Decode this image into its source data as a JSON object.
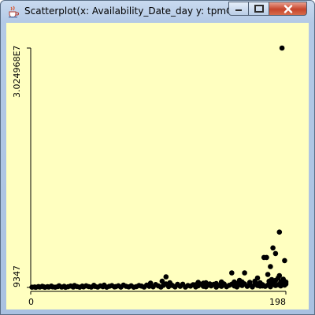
{
  "window": {
    "title": "Scatterplot(x: Availability_Date_day y: tpmC)",
    "icon": "java-cup-icon",
    "buttons": [
      "minimize",
      "maximize",
      "close"
    ]
  },
  "colors": {
    "plot_background": "#ffffc0",
    "points": "#000000",
    "close_button": "#c7452c",
    "title_bar": "#b9cde6"
  },
  "chart_data": {
    "type": "scatter",
    "xlabel": "Availability_Date_day",
    "ylabel": "tpmC",
    "x_ticks": [
      "0",
      "198"
    ],
    "y_ticks": [
      "9347",
      "3.024968E7"
    ],
    "xlim": [
      0,
      198
    ],
    "ylim": [
      9347,
      30249680
    ],
    "grid": false,
    "points": [
      [
        1,
        40000
      ],
      [
        3,
        70000
      ],
      [
        4,
        30000
      ],
      [
        6,
        120000
      ],
      [
        7,
        60000
      ],
      [
        9,
        150000
      ],
      [
        10,
        90000
      ],
      [
        11,
        30000
      ],
      [
        13,
        110000
      ],
      [
        14,
        60000
      ],
      [
        16,
        180000
      ],
      [
        17,
        80000
      ],
      [
        19,
        40000
      ],
      [
        21,
        120000
      ],
      [
        22,
        220000
      ],
      [
        24,
        60000
      ],
      [
        26,
        150000
      ],
      [
        27,
        30000
      ],
      [
        29,
        100000
      ],
      [
        31,
        190000
      ],
      [
        33,
        60000
      ],
      [
        34,
        260000
      ],
      [
        36,
        120000
      ],
      [
        38,
        40000
      ],
      [
        40,
        180000
      ],
      [
        41,
        80000
      ],
      [
        43,
        220000
      ],
      [
        45,
        120000
      ],
      [
        47,
        50000
      ],
      [
        49,
        280000
      ],
      [
        50,
        140000
      ],
      [
        52,
        60000
      ],
      [
        54,
        200000
      ],
      [
        56,
        100000
      ],
      [
        57,
        300000
      ],
      [
        59,
        40000
      ],
      [
        61,
        160000
      ],
      [
        63,
        240000
      ],
      [
        65,
        80000
      ],
      [
        66,
        120000
      ],
      [
        68,
        220000
      ],
      [
        70,
        50000
      ],
      [
        72,
        300000
      ],
      [
        74,
        150000
      ],
      [
        76,
        80000
      ],
      [
        78,
        220000
      ],
      [
        80,
        40000
      ],
      [
        82,
        120000
      ],
      [
        84,
        250000
      ],
      [
        86,
        180000
      ],
      [
        88,
        60000
      ],
      [
        90,
        300000
      ],
      [
        92,
        150000
      ],
      [
        93,
        550000
      ],
      [
        95,
        90000
      ],
      [
        97,
        380000
      ],
      [
        99,
        200000
      ],
      [
        101,
        60000
      ],
      [
        103,
        280000
      ],
      [
        105,
        450000
      ],
      [
        107,
        120000
      ],
      [
        108,
        600000
      ],
      [
        110,
        250000
      ],
      [
        112,
        80000
      ],
      [
        114,
        350000
      ],
      [
        116,
        150000
      ],
      [
        118,
        420000
      ],
      [
        120,
        60000
      ],
      [
        122,
        250000
      ],
      [
        124,
        180000
      ],
      [
        126,
        350000
      ],
      [
        128,
        80000
      ],
      [
        130,
        220000
      ],
      [
        132,
        400000
      ],
      [
        134,
        150000
      ],
      [
        136,
        90000
      ],
      [
        138,
        320000
      ],
      [
        140,
        200000
      ],
      [
        142,
        400000
      ],
      [
        144,
        60000
      ],
      [
        146,
        250000
      ],
      [
        148,
        150000
      ],
      [
        150,
        350000
      ],
      [
        152,
        100000
      ],
      [
        154,
        280000
      ],
      [
        156,
        420000
      ],
      [
        158,
        200000
      ],
      [
        160,
        80000
      ],
      [
        162,
        350000
      ],
      [
        164,
        250000
      ],
      [
        166,
        450000
      ],
      [
        168,
        150000
      ],
      [
        170,
        300000
      ],
      [
        172,
        80000
      ],
      [
        174,
        400000
      ],
      [
        176,
        250000
      ],
      [
        178,
        180000
      ],
      [
        180,
        350000
      ],
      [
        182,
        150000
      ],
      [
        184,
        300000
      ],
      [
        186,
        100000
      ],
      [
        188,
        450000
      ],
      [
        190,
        250000
      ],
      [
        192,
        350000
      ],
      [
        194,
        200000
      ],
      [
        196,
        600000
      ],
      [
        197,
        300000
      ],
      [
        198,
        450000
      ],
      [
        128,
        350000
      ],
      [
        134,
        550000
      ],
      [
        130,
        650000
      ],
      [
        114,
        400000
      ],
      [
        140,
        300000
      ],
      [
        150,
        400000
      ],
      [
        162,
        450000
      ],
      [
        170,
        350000
      ],
      [
        176,
        450000
      ],
      [
        180,
        200000
      ],
      [
        102,
        800000
      ],
      [
        105,
        1350000
      ],
      [
        109,
        350000
      ],
      [
        136,
        600000
      ],
      [
        139,
        450000
      ],
      [
        144,
        500000
      ],
      [
        148,
        700000
      ],
      [
        150,
        450000
      ],
      [
        158,
        700000
      ],
      [
        160,
        500000
      ],
      [
        162,
        900000
      ],
      [
        164,
        700000
      ],
      [
        170,
        650000
      ],
      [
        174,
        800000
      ],
      [
        178,
        600000
      ],
      [
        185,
        800000
      ],
      [
        186,
        500000
      ],
      [
        189,
        350000
      ],
      [
        190,
        900000
      ],
      [
        192,
        1200000
      ],
      [
        193,
        1500000
      ],
      [
        194,
        700000
      ],
      [
        196,
        1050000
      ],
      [
        198,
        700000
      ],
      [
        187,
        1000000
      ],
      [
        184,
        1650000
      ],
      [
        176,
        1200000
      ],
      [
        174,
        400000
      ],
      [
        156,
        1850000
      ],
      [
        166,
        1850000
      ],
      [
        186,
        2650000
      ],
      [
        197,
        3400000
      ],
      [
        190,
        4300000
      ],
      [
        181,
        3800000
      ],
      [
        183,
        3800000
      ],
      [
        188,
        5000000
      ],
      [
        193,
        7000000
      ],
      [
        195,
        30249680
      ]
    ]
  }
}
